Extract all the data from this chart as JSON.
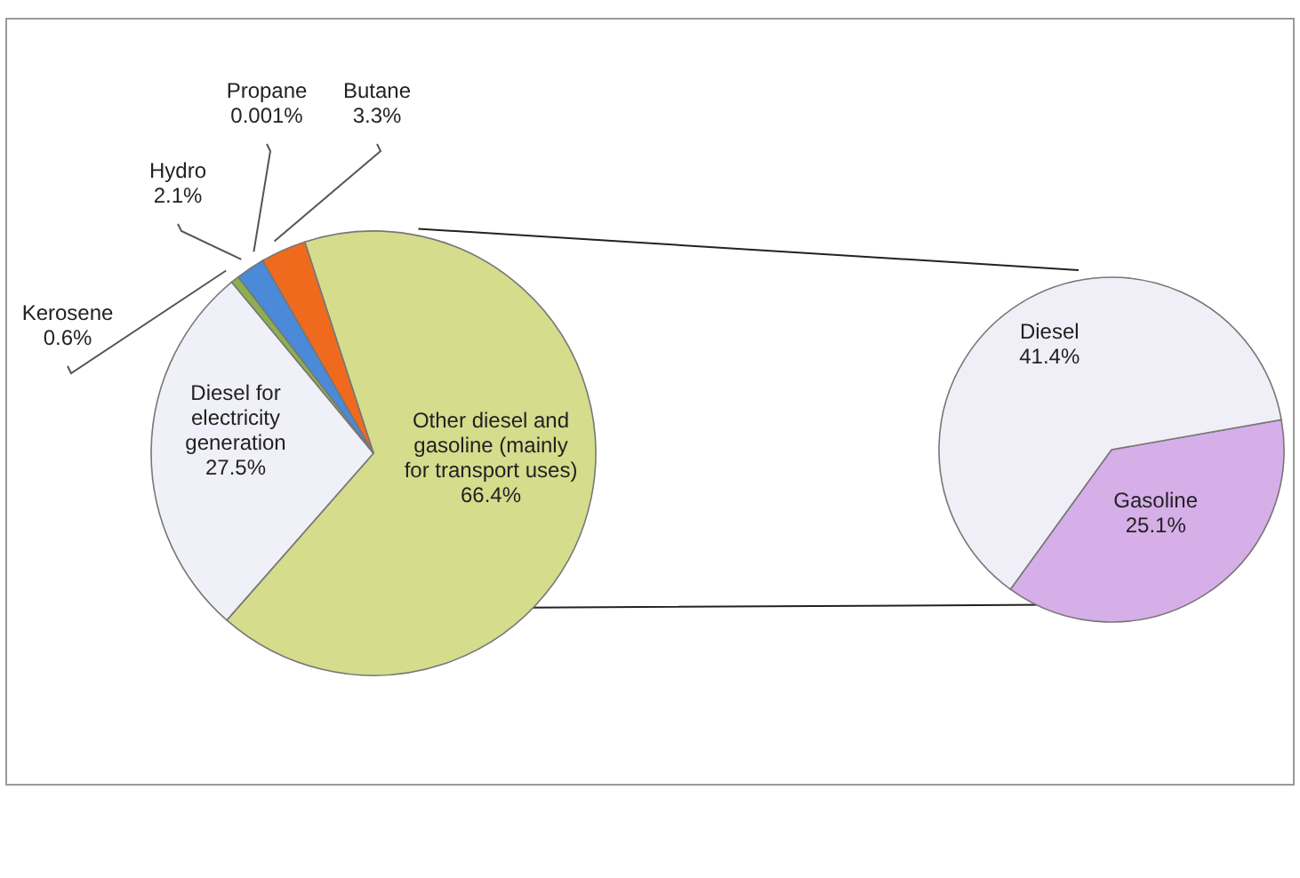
{
  "chart_data": [
    {
      "type": "pie",
      "categories": [
        "Other diesel and gasoline (mainly for transport uses)",
        "Diesel for electricity generation",
        "Kerosene",
        "Hydro",
        "Propane",
        "Butane"
      ],
      "values": [
        66.4,
        27.5,
        0.6,
        2.1,
        0.001,
        3.3
      ],
      "value_labels": [
        "66.4%",
        "27.5%",
        "0.6%",
        "2.1%",
        "0.001%",
        "3.3%"
      ],
      "colors": [
        "#d5dc8c",
        "#f0f0f8",
        "#8cb04e",
        "#4a8ad8",
        "#9a9a9a",
        "#f06a1e"
      ]
    },
    {
      "type": "pie",
      "categories": [
        "Gasoline",
        "Diesel"
      ],
      "values": [
        25.1,
        41.4
      ],
      "value_labels": [
        "25.1%",
        "41.4%"
      ],
      "colors": [
        "#d6aee8",
        "#f0eff8"
      ]
    }
  ]
}
